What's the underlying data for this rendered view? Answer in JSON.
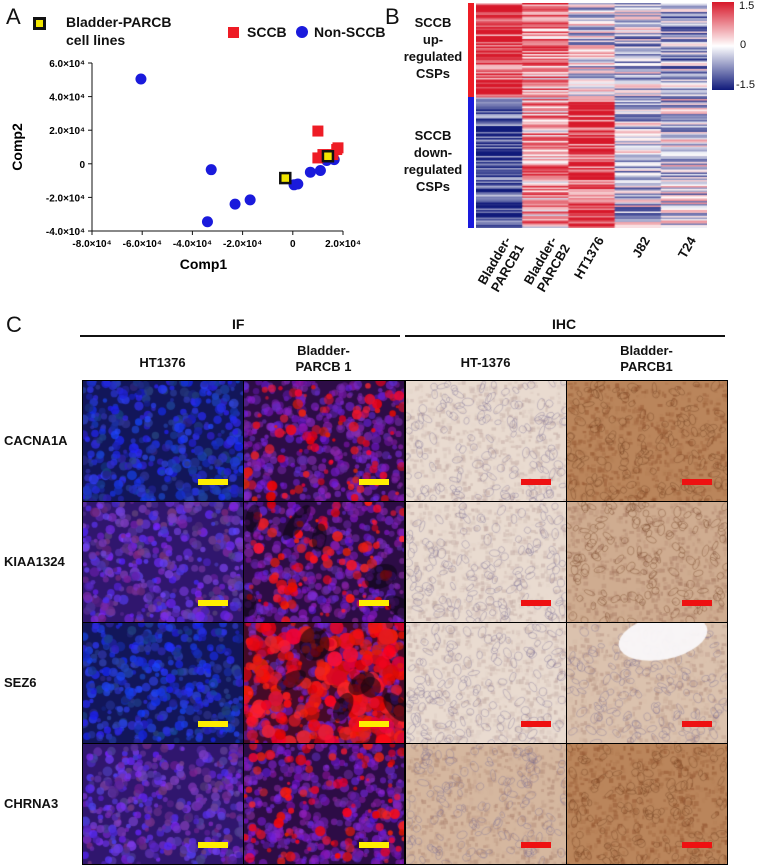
{
  "panel_a": {
    "letter": "A",
    "legend": {
      "bladder_label_line1": "Bladder-PARCB",
      "bladder_label_line2": "cell lines",
      "sccb_label": "SCCB",
      "non_sccb_label": "Non-SCCB"
    },
    "colors": {
      "sccb": "#ee1c25",
      "non_sccb": "#1a1adc",
      "bladder_fill": "#f2e600",
      "bladder_edge": "#111111"
    }
  },
  "chart_data": {
    "type": "scatter",
    "xlabel": "Comp1",
    "ylabel": "Comp2",
    "xlim": [
      -80000,
      20000
    ],
    "ylim": [
      -40000,
      60000
    ],
    "x_ticks": [
      "-8.0×10⁴",
      "-6.0×10⁴",
      "-4.0×10⁴",
      "-2.0×10⁴",
      "0",
      "2.0×10⁴"
    ],
    "x_tick_values": [
      -80000,
      -60000,
      -40000,
      -20000,
      0,
      20000
    ],
    "y_ticks": [
      "6.0×10⁴",
      "4.0×10⁴",
      "2.0×10⁴",
      "0",
      "-2.0×10⁴",
      "-4.0×10⁴"
    ],
    "y_tick_values": [
      60000,
      40000,
      20000,
      0,
      -20000,
      -40000
    ],
    "series": [
      {
        "name": "Non-SCCB",
        "marker": "circle",
        "points": [
          [
            -60500,
            50500
          ],
          [
            -34000,
            -34500
          ],
          [
            -32500,
            -3500
          ],
          [
            -23000,
            -24000
          ],
          [
            -17000,
            -21500
          ],
          [
            500,
            -12500
          ],
          [
            2000,
            -12000
          ],
          [
            7000,
            -5000
          ],
          [
            11000,
            -4000
          ],
          [
            13500,
            2000
          ],
          [
            16500,
            2500
          ]
        ]
      },
      {
        "name": "SCCB",
        "marker": "square",
        "points": [
          [
            10000,
            19500
          ],
          [
            10000,
            3500
          ],
          [
            12000,
            5500
          ],
          [
            16000,
            5500
          ],
          [
            17500,
            8500
          ],
          [
            18000,
            9500
          ]
        ]
      },
      {
        "name": "Bladder-PARCB cell lines",
        "marker": "square-outline",
        "points": [
          [
            -3000,
            -8500
          ],
          [
            14000,
            4500
          ]
        ]
      }
    ]
  },
  "panel_b": {
    "letter": "B",
    "up_label": [
      "SCCB",
      "up-",
      "regulated",
      "CSPs"
    ],
    "down_label": [
      "SCCB",
      "down-",
      "regulated",
      "CSPs"
    ],
    "columns": [
      "Bladder-PARCB1",
      "Bladder-PARCB2",
      "HT1376",
      "J82",
      "T24"
    ],
    "column_label_lines": [
      [
        "Bladder-",
        "PARCB1"
      ],
      [
        "Bladder-",
        "PARCB2"
      ],
      [
        "HT1376"
      ],
      [
        "J82"
      ],
      [
        "T24"
      ]
    ],
    "colorbar_ticks": [
      "1.5",
      "0",
      "-1.5"
    ],
    "colorbar_range": [
      -1.5,
      1.5
    ],
    "up_fraction": 0.42,
    "column_bias": {
      "up": [
        0.9,
        0.45,
        -0.1,
        -0.25,
        -0.35
      ],
      "down": [
        -0.85,
        0.35,
        0.85,
        -0.2,
        -0.15
      ]
    },
    "colors": {
      "high": "#d7182a",
      "mid": "#ffffff",
      "low": "#101a7a",
      "up_bar": "#ee1c25",
      "down_bar": "#1a1adc"
    }
  },
  "panel_c": {
    "letter": "C",
    "if_header": "IF",
    "ihc_header": "IHC",
    "columns": [
      {
        "label_lines": [
          "HT1376"
        ],
        "kind": "if_blue"
      },
      {
        "label_lines": [
          "Bladder-",
          "PARCB 1"
        ],
        "kind": "if_red"
      },
      {
        "label_lines": [
          "HT-1376"
        ],
        "kind": "ihc_light"
      },
      {
        "label_lines": [
          "Bladder-",
          "PARCB1"
        ],
        "kind": "ihc_dark"
      }
    ],
    "rows": [
      "CACNA1A",
      "KIAA1324",
      "SEZ6",
      "CHRNA3"
    ],
    "colors": {
      "if_scalebar": "#ffee00",
      "ihc_scalebar": "#ee1111"
    }
  }
}
